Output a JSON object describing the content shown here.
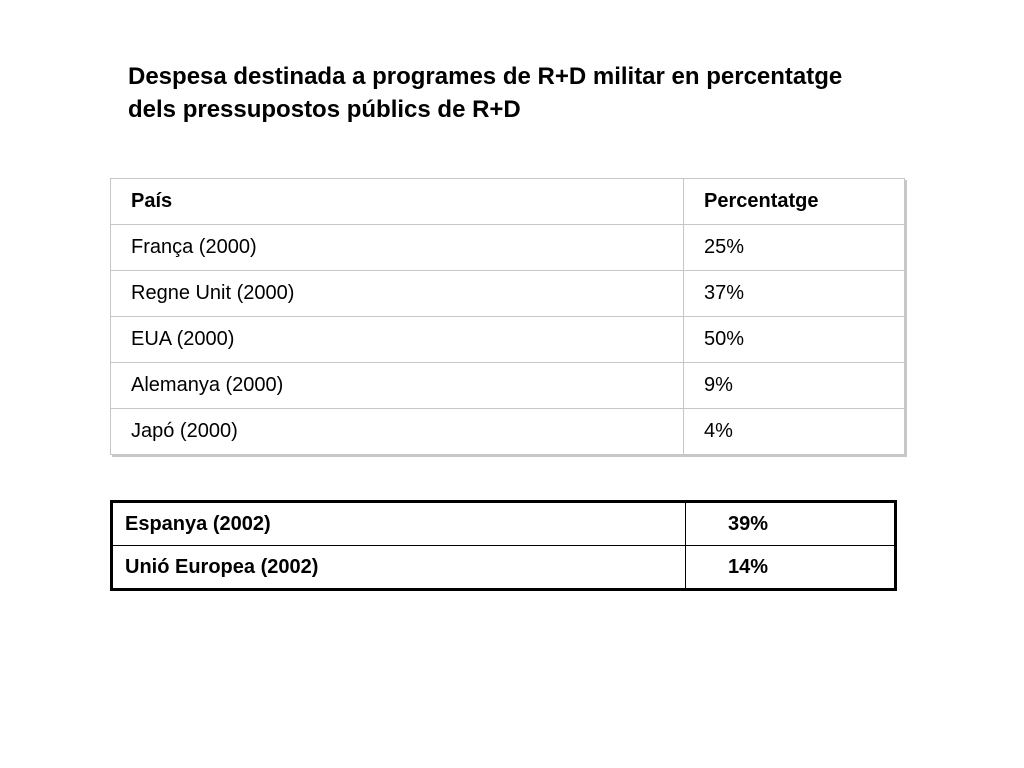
{
  "title": {
    "line1": "Despesa destinada a programes de R+D militar en percentatge",
    "line2": "dels pressupostos públics de R+D"
  },
  "main_table": {
    "header": {
      "country": "País",
      "percentage": "Percentatge"
    },
    "rows": [
      {
        "country": "França (2000)",
        "percentage": "25%"
      },
      {
        "country": "Regne Unit (2000)",
        "percentage": "37%"
      },
      {
        "country": "EUA (2000)",
        "percentage": "50%"
      },
      {
        "country": "Alemanya (2000)",
        "percentage": "9%"
      },
      {
        "country": "Japó (2000)",
        "percentage": "4%"
      }
    ]
  },
  "summary_table": {
    "rows": [
      {
        "country": "Espanya (2002)",
        "percentage": "39%"
      },
      {
        "country": "Unió Europea (2002)",
        "percentage": "14%"
      }
    ]
  }
}
